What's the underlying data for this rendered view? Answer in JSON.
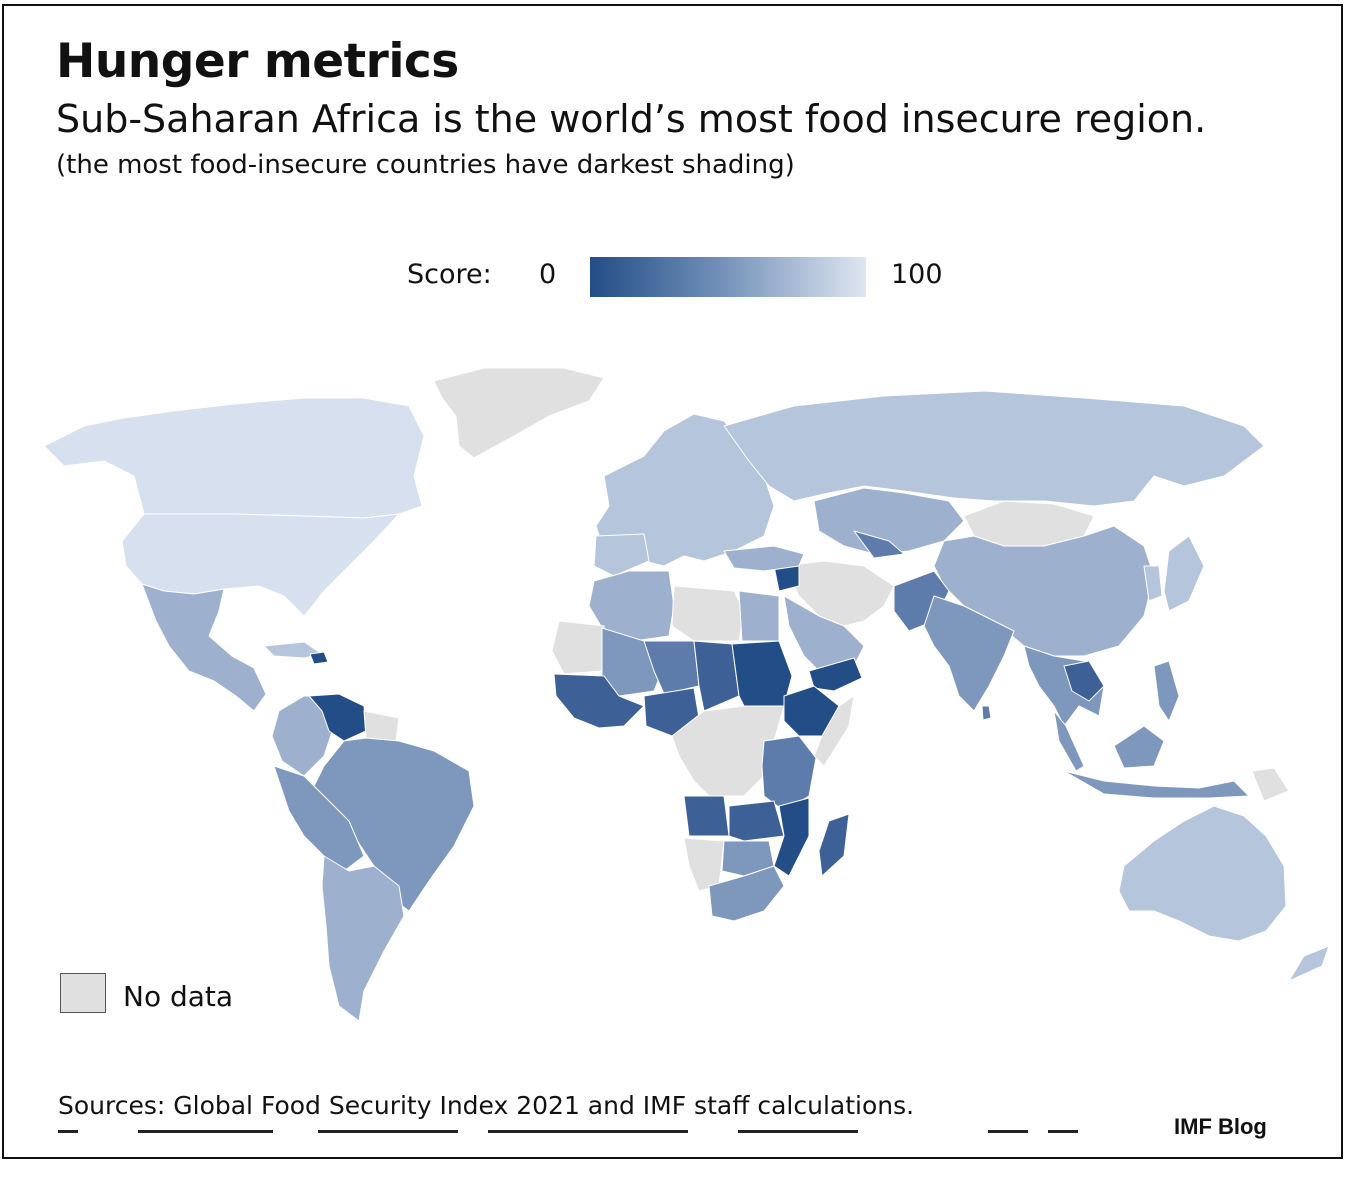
{
  "title": "Hunger metrics",
  "subtitle": "Sub-Saharan Africa is the world’s most food insecure region.",
  "note": "(the most food-insecure countries have darkest shading)",
  "legend": {
    "label": "Score:",
    "min_label": "0",
    "max_label": "100",
    "min_color": "#234d86",
    "max_color": "#dfe6f1",
    "no_data_label": "No data",
    "no_data_color": "#e0e0e0"
  },
  "sources": "Sources: Global Food Security Index 2021 and IMF staff calculations.",
  "brand": "IMF Blog",
  "map": {
    "type": "choropleth",
    "colors": {
      "very_light": "#d6e0ee",
      "light": "#b5c5dc",
      "medium_light": "#9db1cf",
      "medium": "#7d97bd",
      "medium_dark": "#5d7cab",
      "dark": "#3d6096",
      "darkest": "#234d86",
      "no_data": "#e0e0e0"
    }
  }
}
